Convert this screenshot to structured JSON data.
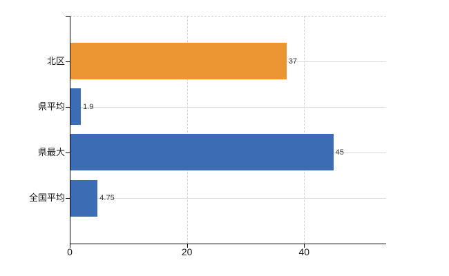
{
  "chart_data": {
    "type": "bar",
    "orientation": "horizontal",
    "title": "",
    "categories": [
      "北区",
      "県平均",
      "県最大",
      "全国平均"
    ],
    "values": [
      37,
      1.9,
      45,
      4.75
    ],
    "value_labels": [
      "37",
      "1.9",
      "45",
      "4.75"
    ],
    "bar_colors": [
      "#EC9533",
      "#3C6CB3",
      "#3C6CB3",
      "#3C6CB3"
    ],
    "x_ticks": [
      0,
      20,
      40
    ],
    "x_tick_labels": [
      "0",
      "20",
      "40"
    ],
    "xlim": [
      0,
      54
    ],
    "xlabel": "",
    "ylabel": "",
    "grid": true,
    "legend_position": "none",
    "colors": {
      "background": "#ffffff",
      "axis": "#000000",
      "grid_horizontal": "#d7ddd7",
      "grid_vertical": "#d0d0d0",
      "category_label": "#1a1a1a",
      "x_tick_label": "#1a1a1a",
      "value_label": "#333333"
    }
  }
}
